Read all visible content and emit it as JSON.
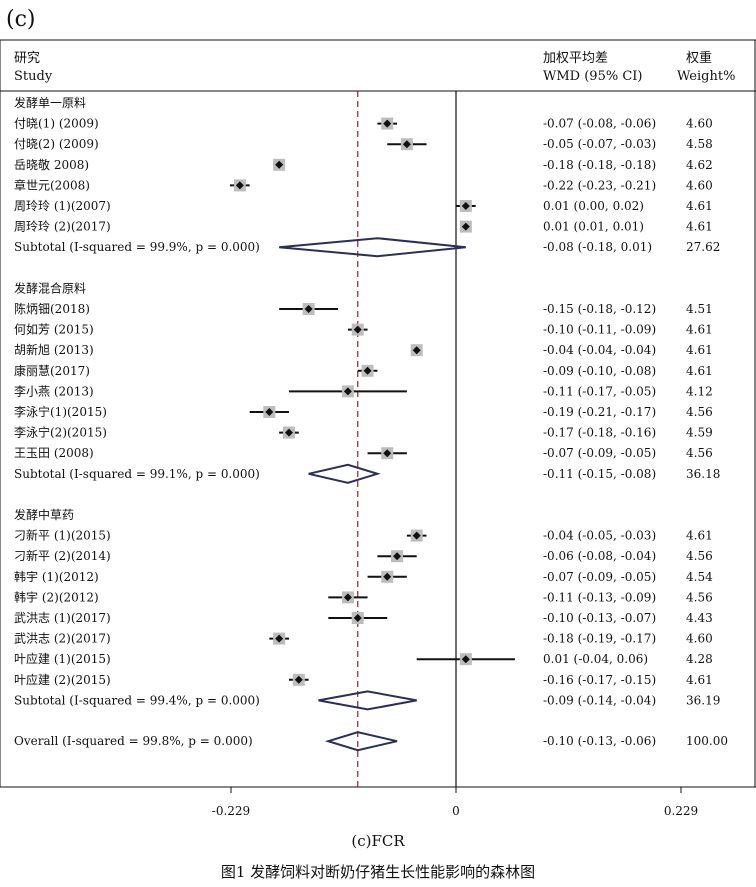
{
  "panel_label": "(c)",
  "header": {
    "study_cn": "研究",
    "study_en": "Study",
    "wmd_cn": "加权平均差",
    "wmd_en": "WMD (95% CI)",
    "weight_cn": "权重",
    "weight_en": "Weight%"
  },
  "caption": "(c)FCR",
  "figure_title": "图1   发酵饲料对断奶仔猪生长性能影响的森林图",
  "colors": {
    "diamond": "#2a2e5a",
    "ref_line": "#9b1b2e",
    "box": "#bdbdbd",
    "line": "#111111"
  },
  "chart_data": {
    "type": "forest",
    "title": "(c)FCR",
    "x_ticks": [
      -0.229,
      0,
      0.229
    ],
    "x_tick_labels": [
      "-0.229",
      "0",
      "0.229"
    ],
    "xlim": [
      -0.45,
      0.3
    ],
    "overall_reference": -0.1,
    "groups": [
      {
        "name": "发酵单一原料",
        "studies": [
          {
            "label": "付晓(1) (2009)",
            "est": -0.07,
            "lo": -0.08,
            "hi": -0.06,
            "ci": "-0.07 (-0.08, -0.06)",
            "weight": "4.60"
          },
          {
            "label": "付晓(2) (2009)",
            "est": -0.05,
            "lo": -0.07,
            "hi": -0.03,
            "ci": "-0.05 (-0.07, -0.03)",
            "weight": "4.58"
          },
          {
            "label": "岳晓敬 2008)",
            "est": -0.18,
            "lo": -0.18,
            "hi": -0.18,
            "ci": "-0.18 (-0.18, -0.18)",
            "weight": "4.62"
          },
          {
            "label": "章世元(2008)",
            "est": -0.22,
            "lo": -0.23,
            "hi": -0.21,
            "ci": "-0.22 (-0.23, -0.21)",
            "weight": "4.60"
          },
          {
            "label": "周玲玲 (1)(2007)",
            "est": 0.01,
            "lo": 0.0,
            "hi": 0.02,
            "ci": "0.01 (0.00, 0.02)",
            "weight": "4.61"
          },
          {
            "label": "周玲玲 (2)(2017)",
            "est": 0.01,
            "lo": 0.01,
            "hi": 0.01,
            "ci": "0.01 (0.01, 0.01)",
            "weight": "4.61"
          }
        ],
        "subtotal": {
          "label": "Subtotal  (I-squared = 99.9%, p = 0.000)",
          "est": -0.08,
          "lo": -0.18,
          "hi": 0.01,
          "ci": "-0.08 (-0.18, 0.01)",
          "weight": "27.62"
        }
      },
      {
        "name": "发酵混合原料",
        "studies": [
          {
            "label": "陈炳钿(2018)",
            "est": -0.15,
            "lo": -0.18,
            "hi": -0.12,
            "ci": "-0.15 (-0.18, -0.12)",
            "weight": "4.51"
          },
          {
            "label": "何如芳 (2015)",
            "est": -0.1,
            "lo": -0.11,
            "hi": -0.09,
            "ci": "-0.10 (-0.11, -0.09)",
            "weight": "4.61"
          },
          {
            "label": "胡新旭 (2013)",
            "est": -0.04,
            "lo": -0.04,
            "hi": -0.04,
            "ci": "-0.04 (-0.04, -0.04)",
            "weight": "4.61"
          },
          {
            "label": "康丽慧(2017)",
            "est": -0.09,
            "lo": -0.1,
            "hi": -0.08,
            "ci": "-0.09 (-0.10, -0.08)",
            "weight": "4.61"
          },
          {
            "label": "李小燕 (2013)",
            "est": -0.11,
            "lo": -0.17,
            "hi": -0.05,
            "ci": "-0.11 (-0.17, -0.05)",
            "weight": "4.12"
          },
          {
            "label": "李泳宁(1)(2015)",
            "est": -0.19,
            "lo": -0.21,
            "hi": -0.17,
            "ci": "-0.19 (-0.21, -0.17)",
            "weight": "4.56"
          },
          {
            "label": "李泳宁(2)(2015)",
            "est": -0.17,
            "lo": -0.18,
            "hi": -0.16,
            "ci": "-0.17 (-0.18, -0.16)",
            "weight": "4.59"
          },
          {
            "label": "王玉田 (2008)",
            "est": -0.07,
            "lo": -0.09,
            "hi": -0.05,
            "ci": "-0.07 (-0.09, -0.05)",
            "weight": "4.56"
          }
        ],
        "subtotal": {
          "label": "Subtotal  (I-squared = 99.1%, p = 0.000)",
          "est": -0.11,
          "lo": -0.15,
          "hi": -0.08,
          "ci": "-0.11 (-0.15, -0.08)",
          "weight": "36.18"
        }
      },
      {
        "name": "发酵中草药",
        "studies": [
          {
            "label": "刁新平 (1)(2015)",
            "est": -0.04,
            "lo": -0.05,
            "hi": -0.03,
            "ci": "-0.04 (-0.05, -0.03)",
            "weight": "4.61"
          },
          {
            "label": "刁新平 (2)(2014)",
            "est": -0.06,
            "lo": -0.08,
            "hi": -0.04,
            "ci": "-0.06 (-0.08, -0.04)",
            "weight": "4.56"
          },
          {
            "label": "韩宇  (1)(2012)",
            "est": -0.07,
            "lo": -0.09,
            "hi": -0.05,
            "ci": "-0.07 (-0.09, -0.05)",
            "weight": "4.54"
          },
          {
            "label": "韩宇  (2)(2012)",
            "est": -0.11,
            "lo": -0.13,
            "hi": -0.09,
            "ci": "-0.11 (-0.13, -0.09)",
            "weight": "4.56"
          },
          {
            "label": "武洪志  (1)(2017)",
            "est": -0.1,
            "lo": -0.13,
            "hi": -0.07,
            "ci": "-0.10 (-0.13, -0.07)",
            "weight": "4.43"
          },
          {
            "label": "武洪志  (2)(2017)",
            "est": -0.18,
            "lo": -0.19,
            "hi": -0.17,
            "ci": "-0.18 (-0.19, -0.17)",
            "weight": "4.60"
          },
          {
            "label": "叶应建  (1)(2015)",
            "est": 0.01,
            "lo": -0.04,
            "hi": 0.06,
            "ci": "0.01 (-0.04, 0.06)",
            "weight": "4.28"
          },
          {
            "label": "叶应建  (2)(2015)",
            "est": -0.16,
            "lo": -0.17,
            "hi": -0.15,
            "ci": "-0.16 (-0.17, -0.15)",
            "weight": "4.61"
          }
        ],
        "subtotal": {
          "label": "Subtotal  (I-squared = 99.4%, p = 0.000)",
          "est": -0.09,
          "lo": -0.14,
          "hi": -0.04,
          "ci": "-0.09 (-0.14, -0.04)",
          "weight": "36.19"
        }
      }
    ],
    "overall": {
      "label": "Overall  (I-squared = 99.8%, p = 0.000)",
      "est": -0.1,
      "lo": -0.13,
      "hi": -0.06,
      "ci": "-0.10 (-0.13, -0.06)",
      "weight": "100.00"
    }
  }
}
